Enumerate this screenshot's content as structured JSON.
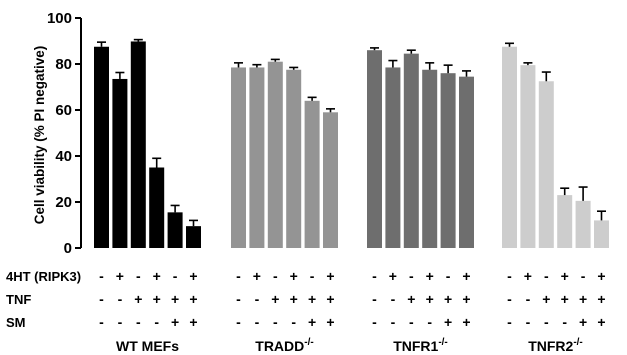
{
  "chart_data": {
    "type": "bar",
    "title": "",
    "xlabel": "",
    "ylabel": "Cell viability (% PI  negative)",
    "ylim": [
      0,
      100
    ],
    "yticks": [
      "0",
      "20",
      "40",
      "60",
      "80",
      "100"
    ],
    "grid": false,
    "groups": [
      {
        "label": "WT MEFs",
        "superscript": "",
        "color": "#000000",
        "values": [
          87.5,
          73.5,
          89.8,
          35.0,
          15.5,
          9.5
        ],
        "errors": [
          2.0,
          2.8,
          0.8,
          4.0,
          3.0,
          2.5
        ]
      },
      {
        "label": "TRADD",
        "superscript": "-/-",
        "color": "#949494",
        "values": [
          78.5,
          78.5,
          81.0,
          77.5,
          64.0,
          59.0
        ],
        "errors": [
          2.0,
          1.2,
          1.0,
          1.0,
          1.5,
          1.5
        ]
      },
      {
        "label": "TNFR1",
        "superscript": "-/-",
        "color": "#6e6e6e",
        "values": [
          86.0,
          78.5,
          84.5,
          77.5,
          76.0,
          74.5
        ],
        "errors": [
          1.0,
          3.0,
          1.5,
          3.0,
          3.5,
          2.5
        ]
      },
      {
        "label": "TNFR2",
        "superscript": "-/-",
        "color": "#cdcdcd",
        "values": [
          87.5,
          79.5,
          72.5,
          23.0,
          20.5,
          12.0
        ],
        "errors": [
          1.5,
          1.0,
          4.0,
          3.0,
          6.0,
          4.0
        ]
      }
    ],
    "conditions": [
      {
        "label": "4HT (RIPK3)",
        "signs": [
          "-",
          "+",
          "-",
          "+",
          "-",
          "+"
        ]
      },
      {
        "label": "TNF",
        "signs": [
          "-",
          "-",
          "+",
          "+",
          "+",
          "+"
        ]
      },
      {
        "label": "SM",
        "signs": [
          "-",
          "-",
          "-",
          "-",
          "+",
          "+"
        ]
      }
    ]
  }
}
